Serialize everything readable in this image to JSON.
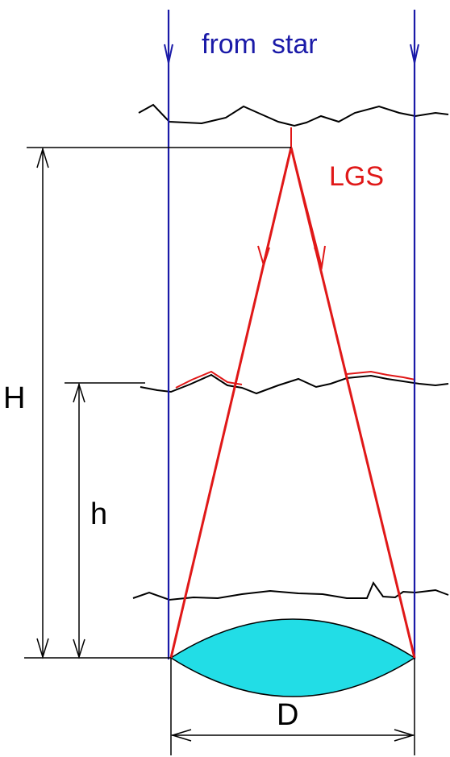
{
  "labels": {
    "from_star": "from  star",
    "lgs": "LGS",
    "H": "H",
    "h": "h",
    "D": "D"
  },
  "colors": {
    "star_light": "#1a1aa8",
    "lgs_beam": "#e01818",
    "turbulence_layer": "#000000",
    "dimension_lines": "#000000",
    "telescope_lens_fill": "#22dde6",
    "background": "#ffffff"
  }
}
